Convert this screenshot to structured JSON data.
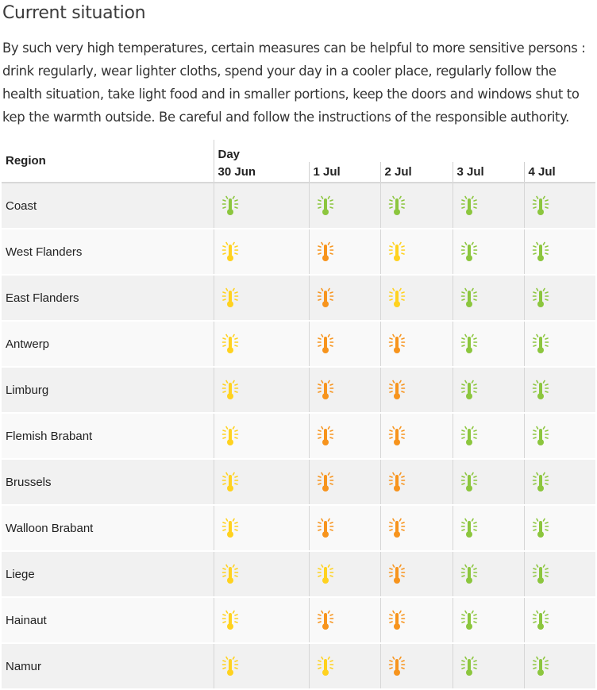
{
  "page": {
    "title": "Current situation",
    "intro": "By such very high temperatures, certain measures can be helpful to more sensitive persons : drink regularly, wear lighter cloths, spend your day in a cooler place, regularly follow the health situation, take light food and in smaller portions, keep the doors and windows shut to kep the warmth outside. Be careful and follow the instructions of the responsible authority."
  },
  "table": {
    "region_header": "Region",
    "day_header": "Day",
    "dates": [
      "30 Jun",
      "1 Jul",
      "2 Jul",
      "3 Jul",
      "4 Jul"
    ],
    "level_colors": {
      "green": "#8cc63e",
      "yellow": "#ffd21f",
      "orange": "#f7941d"
    },
    "icon_name": "thermometer-heat-icon",
    "rows": [
      {
        "region": "Coast",
        "levels": [
          "green",
          "green",
          "green",
          "green",
          "green"
        ]
      },
      {
        "region": "West Flanders",
        "levels": [
          "yellow",
          "orange",
          "yellow",
          "green",
          "green"
        ]
      },
      {
        "region": "East Flanders",
        "levels": [
          "yellow",
          "orange",
          "yellow",
          "green",
          "green"
        ]
      },
      {
        "region": "Antwerp",
        "levels": [
          "yellow",
          "orange",
          "orange",
          "green",
          "green"
        ]
      },
      {
        "region": "Limburg",
        "levels": [
          "yellow",
          "orange",
          "orange",
          "green",
          "green"
        ]
      },
      {
        "region": "Flemish Brabant",
        "levels": [
          "yellow",
          "orange",
          "orange",
          "green",
          "green"
        ]
      },
      {
        "region": "Brussels",
        "levels": [
          "yellow",
          "orange",
          "orange",
          "green",
          "green"
        ]
      },
      {
        "region": "Walloon Brabant",
        "levels": [
          "yellow",
          "orange",
          "orange",
          "green",
          "green"
        ]
      },
      {
        "region": "Liege",
        "levels": [
          "yellow",
          "yellow",
          "orange",
          "green",
          "green"
        ]
      },
      {
        "region": "Hainaut",
        "levels": [
          "yellow",
          "orange",
          "orange",
          "green",
          "green"
        ]
      },
      {
        "region": "Namur",
        "levels": [
          "yellow",
          "yellow",
          "orange",
          "green",
          "green"
        ]
      }
    ]
  }
}
